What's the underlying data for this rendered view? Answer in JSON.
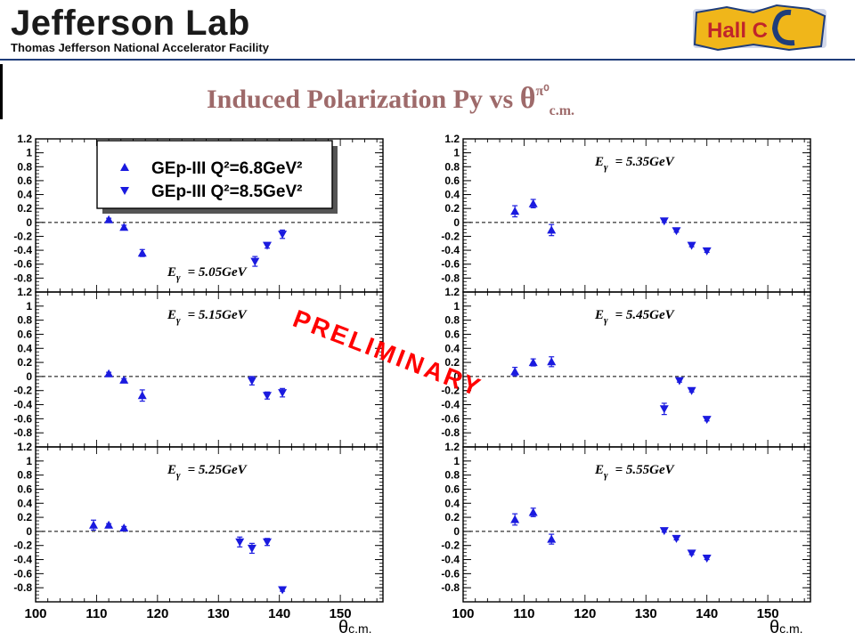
{
  "header": {
    "logo_text": "Jefferson Lab",
    "logo_subtitle": "Thomas Jefferson National Accelerator Facility",
    "hall_logo_text": "Hall C"
  },
  "slide_title": {
    "main": "Induced Polarization Py vs ",
    "theta": "θ",
    "superscript": "π⁰",
    "subscript": "c.m."
  },
  "watermark": "PRELIMINARY",
  "x_axis_label": {
    "symbol": "θ",
    "subscript": "c.m."
  },
  "colors": {
    "marker": "#1a1adf",
    "title": "#9e6a6a",
    "watermark": "#ff0000"
  },
  "chart_data": {
    "type": "scatter",
    "x_ticks": [
      "100",
      "110",
      "120",
      "130",
      "140",
      "150"
    ],
    "y_ticks": [
      "1.2",
      "1",
      "0.8",
      "0.6",
      "0.4",
      "0.2",
      "0",
      "-0.2",
      "-0.4",
      "-0.6",
      "-0.8"
    ],
    "xlim": [
      100,
      157
    ],
    "ylim": [
      -1,
      1.2
    ],
    "reference_line_y": 0,
    "legend": {
      "placement": "top-left",
      "entries": [
        {
          "label": "GEp-III Q²=6.8GeV²",
          "marker": "triangle-up"
        },
        {
          "label": "GEp-III Q²=8.5GeV²",
          "marker": "triangle-down"
        }
      ]
    },
    "panels": [
      {
        "label": "E",
        "label_sub": "γ",
        "label_value": "= 5.05GeV",
        "label_pos": "bottom",
        "series": [
          {
            "marker": "triangle-up",
            "points": [
              {
                "x": 112,
                "y": 0.04,
                "err": 0.02
              },
              {
                "x": 114.5,
                "y": -0.07,
                "err": 0.03
              },
              {
                "x": 117.5,
                "y": -0.44,
                "err": 0.05
              }
            ]
          },
          {
            "marker": "triangle-down",
            "points": [
              {
                "x": 136,
                "y": -0.56,
                "err": 0.07
              },
              {
                "x": 138,
                "y": -0.33,
                "err": 0.04
              },
              {
                "x": 140.5,
                "y": -0.17,
                "err": 0.06
              }
            ]
          }
        ]
      },
      {
        "label": "E",
        "label_sub": "γ",
        "label_value": "= 5.35GeV",
        "label_pos": "top",
        "series": [
          {
            "marker": "triangle-up",
            "points": [
              {
                "x": 108.5,
                "y": 0.16,
                "err": 0.08
              },
              {
                "x": 111.5,
                "y": 0.27,
                "err": 0.06
              },
              {
                "x": 114.5,
                "y": -0.11,
                "err": 0.08
              }
            ]
          },
          {
            "marker": "triangle-down",
            "points": [
              {
                "x": 133,
                "y": 0.02,
                "err": 0.02
              },
              {
                "x": 135,
                "y": -0.12,
                "err": 0.02
              },
              {
                "x": 137.5,
                "y": -0.33,
                "err": 0.02
              },
              {
                "x": 140,
                "y": -0.41,
                "err": 0.02
              }
            ]
          }
        ]
      },
      {
        "label": "E",
        "label_sub": "γ",
        "label_value": "= 5.15GeV",
        "label_pos": "top",
        "series": [
          {
            "marker": "triangle-up",
            "points": [
              {
                "x": 112,
                "y": 0.04,
                "err": 0.02
              },
              {
                "x": 114.5,
                "y": -0.05,
                "err": 0.02
              },
              {
                "x": 117.5,
                "y": -0.27,
                "err": 0.08
              }
            ]
          },
          {
            "marker": "triangle-down",
            "points": [
              {
                "x": 135.5,
                "y": -0.06,
                "err": 0.06
              },
              {
                "x": 138,
                "y": -0.27,
                "err": 0.05
              },
              {
                "x": 140.5,
                "y": -0.23,
                "err": 0.06
              }
            ]
          }
        ]
      },
      {
        "label": "E",
        "label_sub": "γ",
        "label_value": "= 5.45GeV",
        "label_pos": "top",
        "series": [
          {
            "marker": "triangle-up",
            "points": [
              {
                "x": 108.5,
                "y": 0.07,
                "err": 0.06
              },
              {
                "x": 111.5,
                "y": 0.2,
                "err": 0.05
              },
              {
                "x": 114.5,
                "y": 0.21,
                "err": 0.07
              }
            ]
          },
          {
            "marker": "triangle-down",
            "points": [
              {
                "x": 133,
                "y": -0.46,
                "err": 0.08
              },
              {
                "x": 135.5,
                "y": -0.06,
                "err": 0.02
              },
              {
                "x": 137.5,
                "y": -0.2,
                "err": 0.02
              },
              {
                "x": 140,
                "y": -0.61,
                "err": 0.02
              }
            ]
          }
        ]
      },
      {
        "label": "E",
        "label_sub": "γ",
        "label_value": "= 5.25GeV",
        "label_pos": "top",
        "series": [
          {
            "marker": "triangle-up",
            "points": [
              {
                "x": 109.5,
                "y": 0.09,
                "err": 0.07
              },
              {
                "x": 112,
                "y": 0.09,
                "err": 0.02
              },
              {
                "x": 114.5,
                "y": 0.05,
                "err": 0.02
              }
            ]
          },
          {
            "marker": "triangle-down",
            "points": [
              {
                "x": 133.5,
                "y": -0.15,
                "err": 0.07
              },
              {
                "x": 135.5,
                "y": -0.24,
                "err": 0.07
              },
              {
                "x": 138,
                "y": -0.15,
                "err": 0.05
              },
              {
                "x": 140.5,
                "y": -0.83,
                "err": 0.02
              }
            ]
          }
        ]
      },
      {
        "label": "E",
        "label_sub": "γ",
        "label_value": "= 5.55GeV",
        "label_pos": "top",
        "series": [
          {
            "marker": "triangle-up",
            "points": [
              {
                "x": 108.5,
                "y": 0.17,
                "err": 0.08
              },
              {
                "x": 111.5,
                "y": 0.27,
                "err": 0.06
              },
              {
                "x": 114.5,
                "y": -0.11,
                "err": 0.07
              }
            ]
          },
          {
            "marker": "triangle-down",
            "points": [
              {
                "x": 133,
                "y": 0.01,
                "err": 0.02
              },
              {
                "x": 135,
                "y": -0.1,
                "err": 0.02
              },
              {
                "x": 137.5,
                "y": -0.31,
                "err": 0.02
              },
              {
                "x": 140,
                "y": -0.38,
                "err": 0.02
              }
            ]
          }
        ]
      }
    ]
  }
}
